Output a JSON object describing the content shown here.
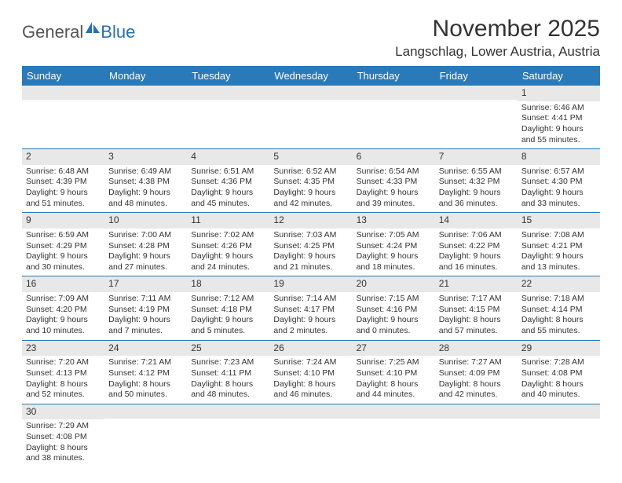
{
  "logo": {
    "text1": "General",
    "text2": "Blue"
  },
  "title": "November 2025",
  "location": "Langschlag, Lower Austria, Austria",
  "header_bg": "#2a7ab9",
  "header_fg": "#ffffff",
  "daynum_bg": "#e8e8e8",
  "row_border": "#2a7ab9",
  "weekdays": [
    "Sunday",
    "Monday",
    "Tuesday",
    "Wednesday",
    "Thursday",
    "Friday",
    "Saturday"
  ],
  "weeks": [
    [
      {
        "n": "",
        "sr": "",
        "ss": "",
        "dl": ""
      },
      {
        "n": "",
        "sr": "",
        "ss": "",
        "dl": ""
      },
      {
        "n": "",
        "sr": "",
        "ss": "",
        "dl": ""
      },
      {
        "n": "",
        "sr": "",
        "ss": "",
        "dl": ""
      },
      {
        "n": "",
        "sr": "",
        "ss": "",
        "dl": ""
      },
      {
        "n": "",
        "sr": "",
        "ss": "",
        "dl": ""
      },
      {
        "n": "1",
        "sr": "Sunrise: 6:46 AM",
        "ss": "Sunset: 4:41 PM",
        "dl": "Daylight: 9 hours and 55 minutes."
      }
    ],
    [
      {
        "n": "2",
        "sr": "Sunrise: 6:48 AM",
        "ss": "Sunset: 4:39 PM",
        "dl": "Daylight: 9 hours and 51 minutes."
      },
      {
        "n": "3",
        "sr": "Sunrise: 6:49 AM",
        "ss": "Sunset: 4:38 PM",
        "dl": "Daylight: 9 hours and 48 minutes."
      },
      {
        "n": "4",
        "sr": "Sunrise: 6:51 AM",
        "ss": "Sunset: 4:36 PM",
        "dl": "Daylight: 9 hours and 45 minutes."
      },
      {
        "n": "5",
        "sr": "Sunrise: 6:52 AM",
        "ss": "Sunset: 4:35 PM",
        "dl": "Daylight: 9 hours and 42 minutes."
      },
      {
        "n": "6",
        "sr": "Sunrise: 6:54 AM",
        "ss": "Sunset: 4:33 PM",
        "dl": "Daylight: 9 hours and 39 minutes."
      },
      {
        "n": "7",
        "sr": "Sunrise: 6:55 AM",
        "ss": "Sunset: 4:32 PM",
        "dl": "Daylight: 9 hours and 36 minutes."
      },
      {
        "n": "8",
        "sr": "Sunrise: 6:57 AM",
        "ss": "Sunset: 4:30 PM",
        "dl": "Daylight: 9 hours and 33 minutes."
      }
    ],
    [
      {
        "n": "9",
        "sr": "Sunrise: 6:59 AM",
        "ss": "Sunset: 4:29 PM",
        "dl": "Daylight: 9 hours and 30 minutes."
      },
      {
        "n": "10",
        "sr": "Sunrise: 7:00 AM",
        "ss": "Sunset: 4:28 PM",
        "dl": "Daylight: 9 hours and 27 minutes."
      },
      {
        "n": "11",
        "sr": "Sunrise: 7:02 AM",
        "ss": "Sunset: 4:26 PM",
        "dl": "Daylight: 9 hours and 24 minutes."
      },
      {
        "n": "12",
        "sr": "Sunrise: 7:03 AM",
        "ss": "Sunset: 4:25 PM",
        "dl": "Daylight: 9 hours and 21 minutes."
      },
      {
        "n": "13",
        "sr": "Sunrise: 7:05 AM",
        "ss": "Sunset: 4:24 PM",
        "dl": "Daylight: 9 hours and 18 minutes."
      },
      {
        "n": "14",
        "sr": "Sunrise: 7:06 AM",
        "ss": "Sunset: 4:22 PM",
        "dl": "Daylight: 9 hours and 16 minutes."
      },
      {
        "n": "15",
        "sr": "Sunrise: 7:08 AM",
        "ss": "Sunset: 4:21 PM",
        "dl": "Daylight: 9 hours and 13 minutes."
      }
    ],
    [
      {
        "n": "16",
        "sr": "Sunrise: 7:09 AM",
        "ss": "Sunset: 4:20 PM",
        "dl": "Daylight: 9 hours and 10 minutes."
      },
      {
        "n": "17",
        "sr": "Sunrise: 7:11 AM",
        "ss": "Sunset: 4:19 PM",
        "dl": "Daylight: 9 hours and 7 minutes."
      },
      {
        "n": "18",
        "sr": "Sunrise: 7:12 AM",
        "ss": "Sunset: 4:18 PM",
        "dl": "Daylight: 9 hours and 5 minutes."
      },
      {
        "n": "19",
        "sr": "Sunrise: 7:14 AM",
        "ss": "Sunset: 4:17 PM",
        "dl": "Daylight: 9 hours and 2 minutes."
      },
      {
        "n": "20",
        "sr": "Sunrise: 7:15 AM",
        "ss": "Sunset: 4:16 PM",
        "dl": "Daylight: 9 hours and 0 minutes."
      },
      {
        "n": "21",
        "sr": "Sunrise: 7:17 AM",
        "ss": "Sunset: 4:15 PM",
        "dl": "Daylight: 8 hours and 57 minutes."
      },
      {
        "n": "22",
        "sr": "Sunrise: 7:18 AM",
        "ss": "Sunset: 4:14 PM",
        "dl": "Daylight: 8 hours and 55 minutes."
      }
    ],
    [
      {
        "n": "23",
        "sr": "Sunrise: 7:20 AM",
        "ss": "Sunset: 4:13 PM",
        "dl": "Daylight: 8 hours and 52 minutes."
      },
      {
        "n": "24",
        "sr": "Sunrise: 7:21 AM",
        "ss": "Sunset: 4:12 PM",
        "dl": "Daylight: 8 hours and 50 minutes."
      },
      {
        "n": "25",
        "sr": "Sunrise: 7:23 AM",
        "ss": "Sunset: 4:11 PM",
        "dl": "Daylight: 8 hours and 48 minutes."
      },
      {
        "n": "26",
        "sr": "Sunrise: 7:24 AM",
        "ss": "Sunset: 4:10 PM",
        "dl": "Daylight: 8 hours and 46 minutes."
      },
      {
        "n": "27",
        "sr": "Sunrise: 7:25 AM",
        "ss": "Sunset: 4:10 PM",
        "dl": "Daylight: 8 hours and 44 minutes."
      },
      {
        "n": "28",
        "sr": "Sunrise: 7:27 AM",
        "ss": "Sunset: 4:09 PM",
        "dl": "Daylight: 8 hours and 42 minutes."
      },
      {
        "n": "29",
        "sr": "Sunrise: 7:28 AM",
        "ss": "Sunset: 4:08 PM",
        "dl": "Daylight: 8 hours and 40 minutes."
      }
    ],
    [
      {
        "n": "30",
        "sr": "Sunrise: 7:29 AM",
        "ss": "Sunset: 4:08 PM",
        "dl": "Daylight: 8 hours and 38 minutes."
      },
      {
        "n": "",
        "sr": "",
        "ss": "",
        "dl": ""
      },
      {
        "n": "",
        "sr": "",
        "ss": "",
        "dl": ""
      },
      {
        "n": "",
        "sr": "",
        "ss": "",
        "dl": ""
      },
      {
        "n": "",
        "sr": "",
        "ss": "",
        "dl": ""
      },
      {
        "n": "",
        "sr": "",
        "ss": "",
        "dl": ""
      },
      {
        "n": "",
        "sr": "",
        "ss": "",
        "dl": ""
      }
    ]
  ]
}
